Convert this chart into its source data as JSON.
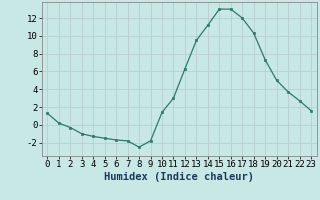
{
  "x": [
    0,
    1,
    2,
    3,
    4,
    5,
    6,
    7,
    8,
    9,
    10,
    11,
    12,
    13,
    14,
    15,
    16,
    17,
    18,
    19,
    20,
    21,
    22,
    23
  ],
  "y": [
    1.3,
    0.2,
    -0.3,
    -1.0,
    -1.3,
    -1.5,
    -1.7,
    -1.8,
    -2.5,
    -1.8,
    1.4,
    3.0,
    6.3,
    9.5,
    11.2,
    13.0,
    13.0,
    12.0,
    10.3,
    7.3,
    5.0,
    3.7,
    2.7,
    1.6
  ],
  "line_color": "#2d7a6a",
  "marker": "s",
  "marker_size": 2.0,
  "bg_color": "#c8e8e5",
  "grid_color": "#b8d0ce",
  "xlabel": "Humidex (Indice chaleur)",
  "xlim": [
    -0.5,
    23.5
  ],
  "ylim": [
    -3.5,
    13.8
  ],
  "yticks": [
    -2,
    0,
    2,
    4,
    6,
    8,
    10,
    12
  ],
  "xticks": [
    0,
    1,
    2,
    3,
    4,
    5,
    6,
    7,
    8,
    9,
    10,
    11,
    12,
    13,
    14,
    15,
    16,
    17,
    18,
    19,
    20,
    21,
    22,
    23
  ],
  "xlabel_fontsize": 7.5,
  "tick_fontsize": 6.5,
  "label_color": "#1a3a5a",
  "linewidth": 0.9
}
